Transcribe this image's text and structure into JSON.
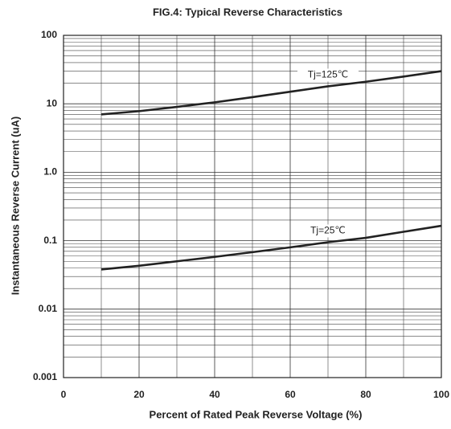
{
  "chart_data": {
    "type": "line",
    "title": "FIG.4: Typical Reverse Characteristics",
    "x_label": "Percent of Rated Peak Reverse Voltage (%)",
    "y_label": "Instantaneous Reverse Current (uA)",
    "x": [
      10,
      20,
      30,
      40,
      50,
      60,
      70,
      80,
      90,
      100
    ],
    "series": [
      {
        "name": "Tj=125℃",
        "color": "#222222",
        "values": [
          7,
          7.8,
          9,
          10.5,
          12.5,
          15,
          18,
          21,
          25,
          30
        ]
      },
      {
        "name": "Tj=25℃",
        "color": "#222222",
        "values": [
          0.038,
          0.043,
          0.05,
          0.058,
          0.068,
          0.08,
          0.095,
          0.11,
          0.135,
          0.165
        ]
      }
    ],
    "xlim": [
      0,
      100
    ],
    "xticks": [
      0,
      20,
      40,
      60,
      80,
      100
    ],
    "ylim": [
      0.001,
      100
    ],
    "yticks": [
      100,
      10,
      {
        "value": 1,
        "label": "1.0"
      },
      0.1,
      0.01,
      0.001
    ],
    "ylog": true,
    "grid": true,
    "minor_grid": true
  }
}
